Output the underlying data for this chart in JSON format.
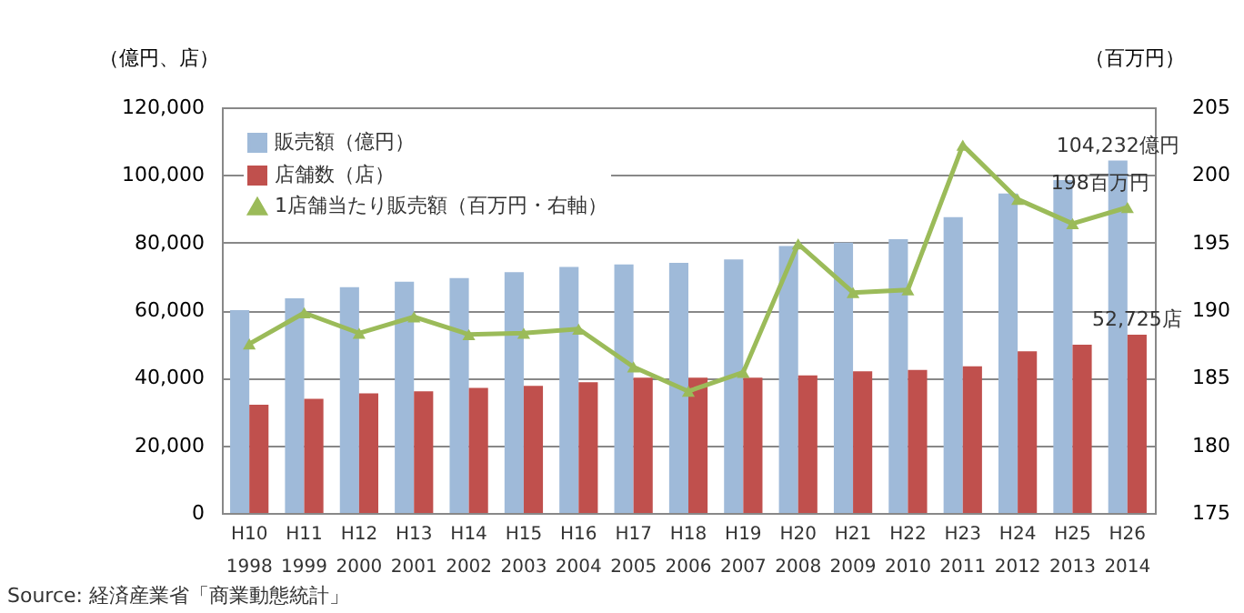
{
  "chart_data": {
    "type": "bar",
    "ylabel": "（億円、店）",
    "y2label": "（百万円）",
    "categories": [
      "H10\n1998",
      "H11\n1999",
      "H12\n2000",
      "H13\n2001",
      "H14\n2002",
      "H15\n2003",
      "H16\n2004",
      "H17\n2005",
      "H18\n2006",
      "H19\n2007",
      "H20\n2008",
      "H21\n2009",
      "H22\n2010",
      "H23\n2011",
      "H24\n2012",
      "H25\n2013",
      "H26\n2014"
    ],
    "series": [
      {
        "name": "販売額（億円）",
        "color": "#9fbad9",
        "values": [
          60000,
          63500,
          66800,
          68400,
          69500,
          71200,
          72800,
          73500,
          74000,
          75000,
          79000,
          80000,
          81000,
          87500,
          94500,
          98500,
          104232
        ],
        "value_labels": [
          null,
          null,
          null,
          null,
          null,
          null,
          null,
          null,
          null,
          null,
          null,
          null,
          null,
          null,
          null,
          null,
          "104,232億円"
        ]
      },
      {
        "name": "店舗数（店）",
        "color": "#c0504d",
        "values": [
          32000,
          33800,
          35400,
          36000,
          37000,
          37600,
          38700,
          40000,
          40000,
          40000,
          40700,
          41900,
          42300,
          43400,
          47800,
          49800,
          52725
        ],
        "value_labels": [
          null,
          null,
          null,
          null,
          null,
          null,
          null,
          null,
          null,
          null,
          null,
          null,
          null,
          null,
          null,
          null,
          "52,725店"
        ]
      },
      {
        "name": "1店舗当たり販売額（百万円・右軸）",
        "type": "line",
        "axis": "y2",
        "color": "#9bbb59",
        "marker": "triangle",
        "line_style": "solid",
        "values": [
          187.5,
          189.8,
          188.3,
          189.5,
          188.2,
          188.3,
          188.6,
          185.8,
          184.0,
          185.4,
          194.9,
          191.3,
          191.5,
          202.2,
          198.2,
          196.4,
          197.6
        ],
        "value_labels": [
          null,
          null,
          null,
          null,
          null,
          null,
          null,
          null,
          null,
          null,
          null,
          null,
          null,
          null,
          null,
          null,
          "198百万円"
        ]
      }
    ],
    "ylim": [
      0,
      120000
    ],
    "yticks": [
      {
        "value": 0,
        "label": "0"
      },
      {
        "value": 20000,
        "label": "20,000"
      },
      {
        "value": 40000,
        "label": "40,000"
      },
      {
        "value": 60000,
        "label": "60,000"
      },
      {
        "value": 80000,
        "label": "80,000"
      },
      {
        "value": 100000,
        "label": "100,000"
      },
      {
        "value": 120000,
        "label": "120,000"
      }
    ],
    "y2lim": [
      175,
      205
    ],
    "y2ticks": [
      175,
      180,
      185,
      190,
      195,
      200,
      205
    ],
    "grid": "y",
    "legend": "top left",
    "annotations": [
      "Source: 経済産業省「商業動態統計」"
    ]
  }
}
